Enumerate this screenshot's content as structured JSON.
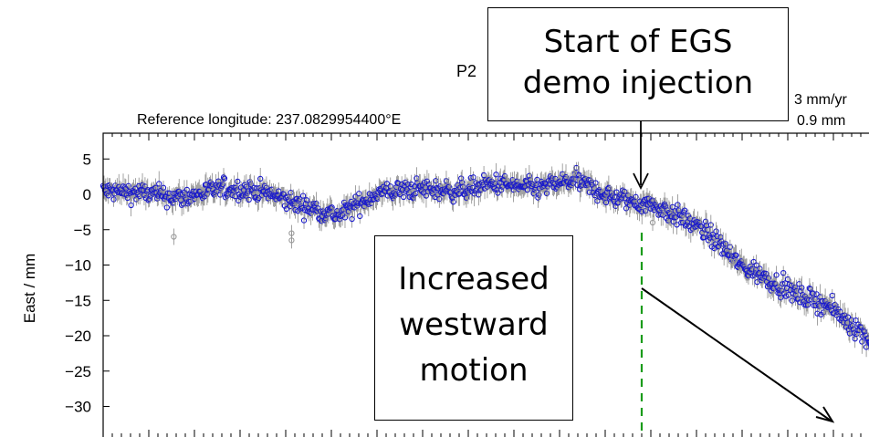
{
  "chart_data": {
    "type": "scatter",
    "title": "P2",
    "subtitle_left": "Reference longitude: 237.0829954400°E",
    "subtitle_right_top": "3 mm/yr",
    "subtitle_right_bottom": "0.9 mm",
    "xlabel": "",
    "ylabel": "East / mm",
    "ylim": [
      -32,
      6
    ],
    "y_ticks": [
      "5",
      "0",
      "−5",
      "−10",
      "−15",
      "−20",
      "−25",
      "−30"
    ],
    "y_tick_values": [
      5,
      0,
      -5,
      -10,
      -15,
      -20,
      -25,
      -30
    ],
    "x_range": [
      0,
      1
    ],
    "grid": false,
    "series": [
      {
        "name": "",
        "color": "#1a1acc",
        "profile_x": [
          0.0,
          0.05,
          0.1,
          0.15,
          0.2,
          0.25,
          0.3,
          0.35,
          0.4,
          0.45,
          0.5,
          0.55,
          0.6,
          0.65,
          0.7,
          0.72,
          0.74,
          0.77,
          0.79,
          0.81,
          0.84,
          0.88,
          0.92,
          0.96,
          1.0
        ],
        "profile_y": [
          0.5,
          0.2,
          -0.5,
          0.8,
          0.5,
          -1.5,
          -3.0,
          0.2,
          0.8,
          0.5,
          1.5,
          0.8,
          2.0,
          -0.5,
          -1.5,
          -2.5,
          -3.5,
          -5.5,
          -7.5,
          -10.0,
          -11.5,
          -14.0,
          -15.5,
          -19.0,
          -23.0
        ]
      },
      {
        "name": "",
        "color": "#999999",
        "outliers_x": [
          0.09,
          0.24,
          0.24,
          0.6,
          0.7,
          0.8
        ],
        "outliers_y": [
          -6.0,
          -5.5,
          -6.5,
          3.0,
          -4.0,
          -9.5
        ]
      }
    ],
    "event_marker": {
      "x": 0.7,
      "color": "#1a9c1a",
      "style": "dashed"
    }
  },
  "annotations": {
    "top": [
      "Start of EGS",
      "demo injection"
    ],
    "bottom": [
      "Increased",
      "westward",
      "motion"
    ]
  }
}
